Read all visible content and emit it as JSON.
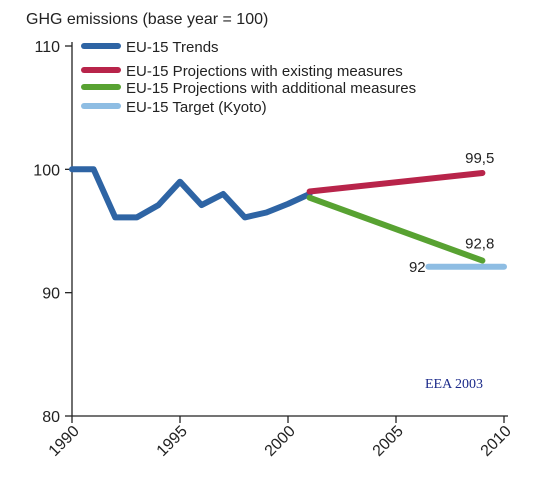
{
  "chart_data": {
    "type": "line",
    "title": "",
    "ylabel": "GHG emissions (base year = 100)",
    "xlabel": "",
    "xlim": [
      1990,
      2010
    ],
    "ylim": [
      80,
      110
    ],
    "xticks": [
      "1990",
      "1995",
      "2000",
      "2005",
      "2010"
    ],
    "yticks": [
      "80",
      "90",
      "100",
      "110"
    ],
    "grid": false,
    "legend_position": "top-left",
    "series": [
      {
        "name": "EU-15 Trends",
        "color": "#2e64a4",
        "x": [
          1990,
          1991,
          1992,
          1993,
          1994,
          1995,
          1996,
          1997,
          1998,
          1999,
          2000,
          2001
        ],
        "y": [
          100,
          100,
          96.1,
          96.1,
          97.1,
          99.0,
          97.1,
          98.0,
          96.1,
          96.5,
          97.2,
          98.0
        ]
      },
      {
        "name": "EU-15 Projections with existing measures",
        "color": "#b8244a",
        "x": [
          2001,
          2009
        ],
        "y": [
          98.2,
          99.7
        ]
      },
      {
        "name": "EU-15 Projections with additional measures",
        "color": "#58a232",
        "x": [
          2001,
          2009
        ],
        "y": [
          97.7,
          92.6
        ]
      },
      {
        "name": "EU-15 Target (Kyoto)",
        "color": "#8ebde3",
        "x": [
          2006.5,
          2010
        ],
        "y": [
          92.1,
          92.1
        ]
      }
    ],
    "annotations": [
      {
        "text": "99,5",
        "x": 2008.2,
        "y": 100.9
      },
      {
        "text": "92,8",
        "x": 2008.2,
        "y": 94.0
      },
      {
        "text": "92",
        "x": 2005.6,
        "y": 92.1
      }
    ],
    "credit": "EEA 2003"
  }
}
